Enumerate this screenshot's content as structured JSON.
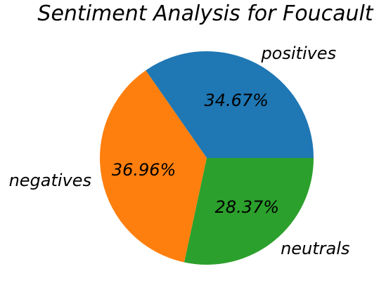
{
  "chart_data": {
    "type": "pie",
    "title": "Sentiment Analysis for Foucault",
    "slices": [
      {
        "label": "positives",
        "value": 34.67,
        "display": "34.67%",
        "color": "#1f77b4"
      },
      {
        "label": "negatives",
        "value": 36.96,
        "display": "36.96%",
        "color": "#ff7f0e"
      },
      {
        "label": "neutrals",
        "value": 28.37,
        "display": "28.37%",
        "color": "#2ca02c"
      }
    ],
    "start_angle_deg": 0,
    "direction": "counterclockwise",
    "legend": "none"
  }
}
